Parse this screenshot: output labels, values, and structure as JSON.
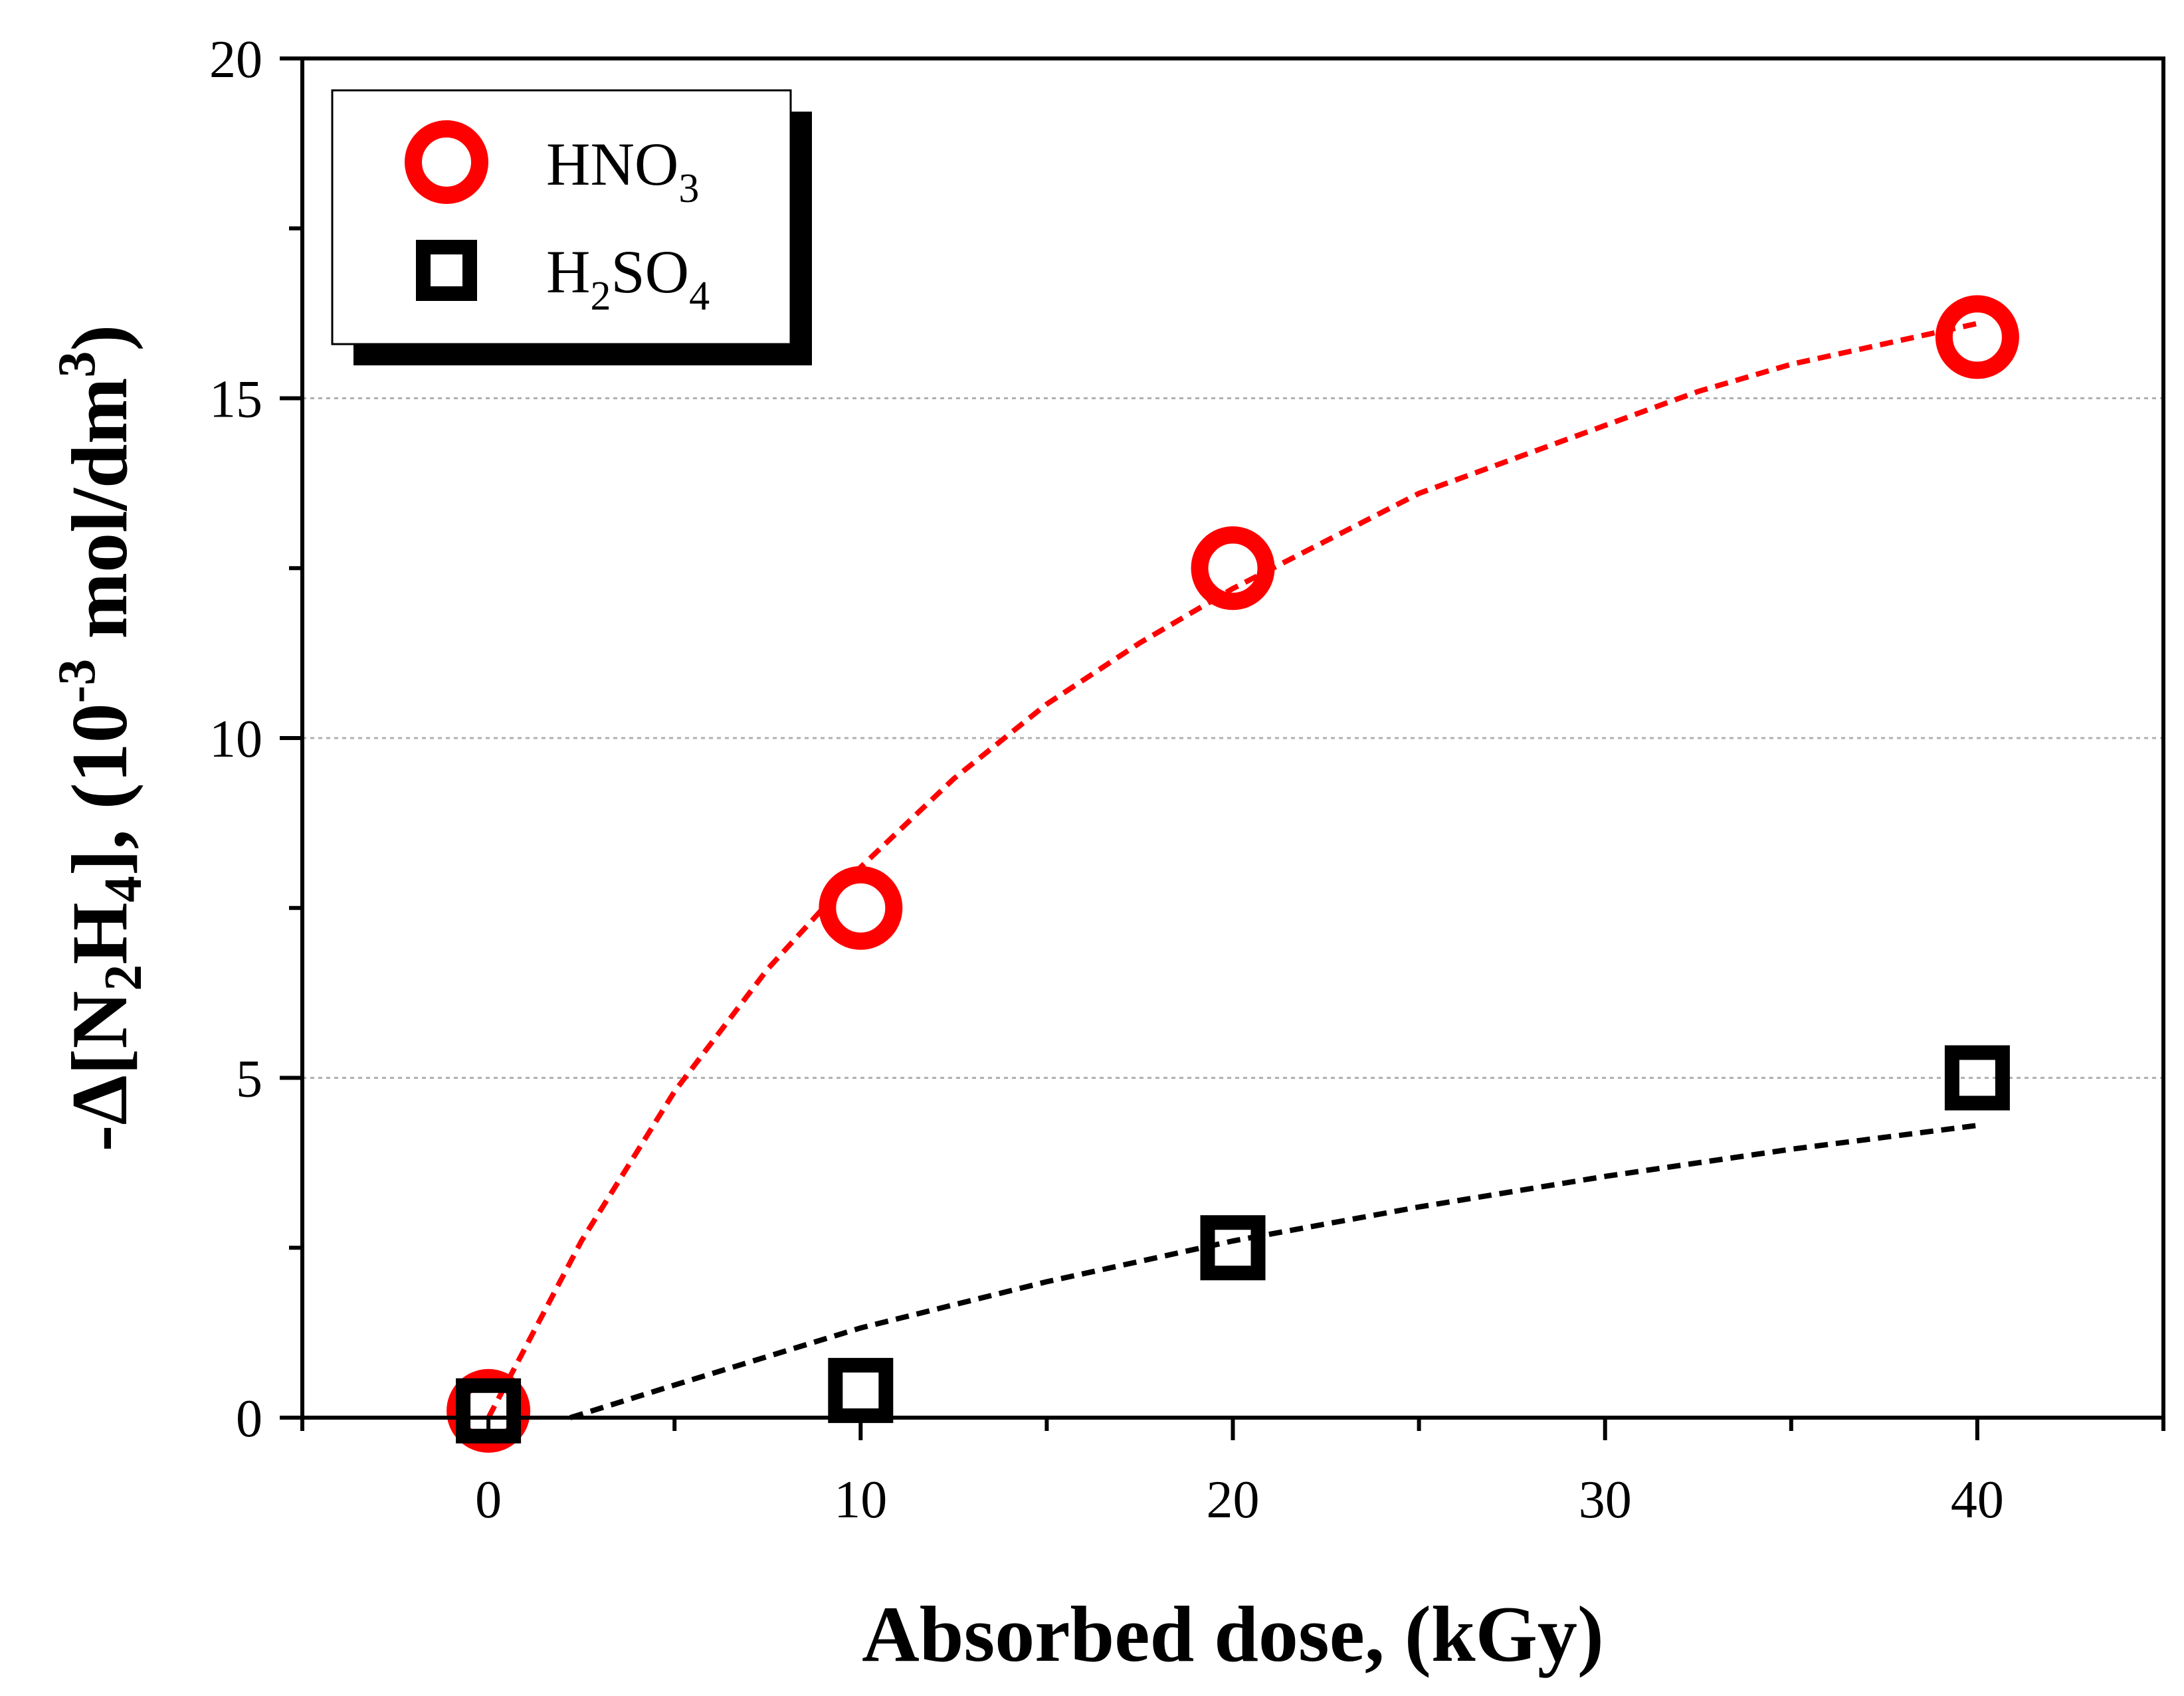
{
  "chart_data": {
    "type": "scatter",
    "title": "",
    "xlabel": "Absorbed dose, (kGy)",
    "ylabel": {
      "prefix": "-Δ[N",
      "sub1": "2",
      "mid": "H",
      "sub2": "4",
      "suffix": "], (10",
      "sup": "-3",
      "unit": " mol/dm",
      "sup2": "3",
      "close": ")"
    },
    "xlim": [
      -5,
      45
    ],
    "ylim": [
      0,
      20
    ],
    "x_ticks": [
      0,
      10,
      20,
      30,
      40
    ],
    "x_tick_labels": [
      "0",
      "10",
      "20",
      "30",
      "40"
    ],
    "y_ticks": [
      0,
      5,
      10,
      15,
      20
    ],
    "y_tick_labels": [
      "0",
      "5",
      "10",
      "15",
      "20"
    ],
    "grid": "horizontal dotted",
    "legend_position": "top-left",
    "series": [
      {
        "name": "HNO3",
        "label_main": "HNO",
        "label_sub": "3",
        "label_tail": "",
        "marker": "circle",
        "color": "#ff0000",
        "x": [
          0,
          10,
          20,
          40
        ],
        "y": [
          0.1,
          7.5,
          12.5,
          15.9
        ],
        "fit": {
          "x": [
            0,
            2.5,
            5,
            7.5,
            10,
            12.5,
            15,
            17.5,
            20,
            22.5,
            25,
            27.5,
            30,
            32.5,
            35,
            37.5,
            40
          ],
          "y": [
            0,
            2.6,
            4.8,
            6.6,
            8.1,
            9.4,
            10.5,
            11.4,
            12.2,
            12.9,
            13.6,
            14.1,
            14.6,
            15.1,
            15.5,
            15.8,
            16.1
          ]
        }
      },
      {
        "name": "H2SO4",
        "label_main": "H",
        "label_sub": "2",
        "label_tail": "SO",
        "label_sub2": "4",
        "marker": "square",
        "color": "#000000",
        "x": [
          0,
          10,
          20,
          40
        ],
        "y": [
          0.1,
          0.4,
          2.5,
          5.0
        ],
        "fit": {
          "x": [
            2.2,
            5,
            10,
            15,
            20,
            25,
            30,
            35,
            40
          ],
          "y": [
            0,
            0.48,
            1.32,
            2.0,
            2.6,
            3.1,
            3.55,
            3.95,
            4.3
          ]
        }
      }
    ]
  }
}
